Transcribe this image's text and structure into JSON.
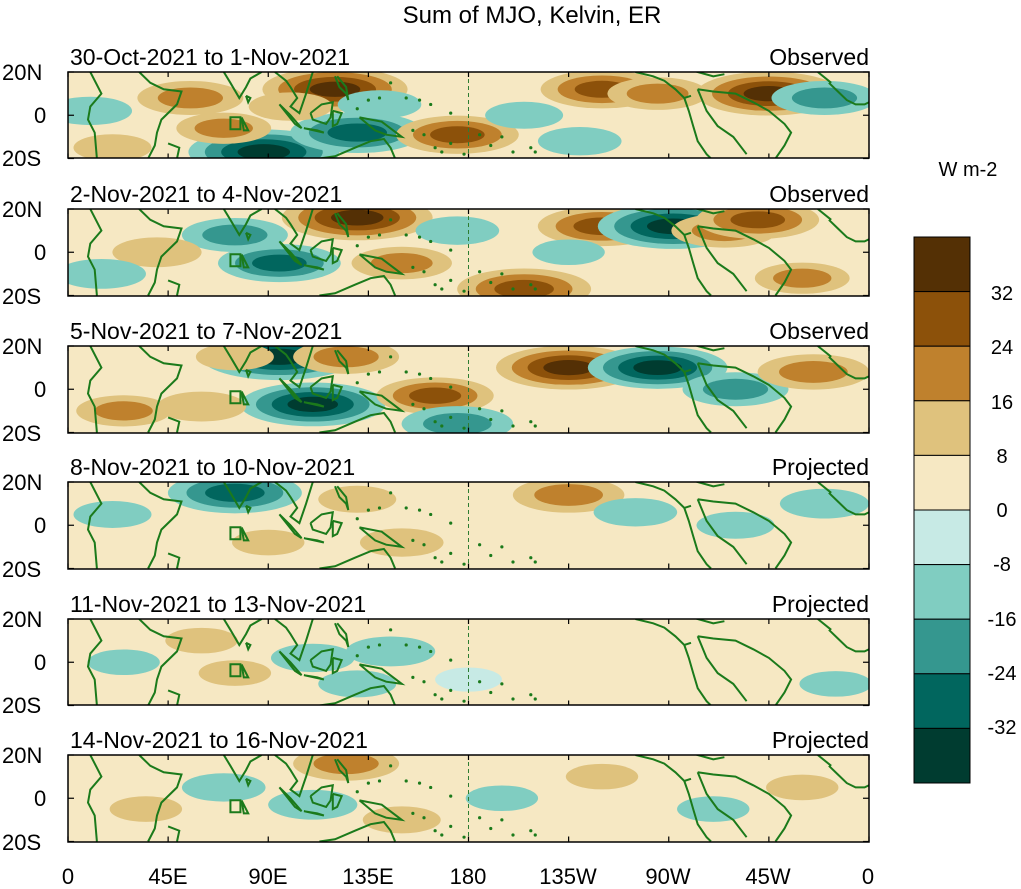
{
  "chart_data": {
    "type": "heatmap",
    "title": "Sum of MJO, Kelvin, ER",
    "colorbar": {
      "units": "W m-2",
      "tick_labels": [
        "32",
        "24",
        "16",
        "8",
        "0",
        "-8",
        "-16",
        "-24",
        "-32"
      ],
      "levels": [
        -40,
        -32,
        -24,
        -16,
        -8,
        0,
        8,
        16,
        24,
        32,
        40
      ],
      "colors": [
        "#003c30",
        "#01665e",
        "#35978f",
        "#80cdc1",
        "#c7eae5",
        "#f6e8c3",
        "#dfc27d",
        "#bf812d",
        "#8c510a",
        "#543005"
      ]
    },
    "x_ticks": [
      "0",
      "45E",
      "90E",
      "135E",
      "180",
      "135W",
      "90W",
      "45W",
      "0"
    ],
    "x_tick_lon": [
      0,
      45,
      90,
      135,
      180,
      225,
      270,
      315,
      360
    ],
    "y_ticks": [
      "20N",
      "0",
      "20S"
    ],
    "y_tick_lat": [
      20,
      0,
      -20
    ],
    "lat_range": [
      -20,
      20
    ],
    "lon_range": [
      0,
      360
    ],
    "panels": [
      {
        "period": "30-Oct-2021 to 1-Nov-2021",
        "status": "Observed",
        "anomalies": [
          {
            "lon": 120,
            "lat": 12,
            "value": 34
          },
          {
            "lon": 140,
            "lat": 5,
            "value": -12
          },
          {
            "lon": 88,
            "lat": -17,
            "value": -36
          },
          {
            "lon": 130,
            "lat": -8,
            "value": -30
          },
          {
            "lon": 175,
            "lat": -9,
            "value": 26
          },
          {
            "lon": 55,
            "lat": 8,
            "value": 20
          },
          {
            "lon": 240,
            "lat": 12,
            "value": 26
          },
          {
            "lon": 265,
            "lat": 10,
            "value": 18
          },
          {
            "lon": 315,
            "lat": 10,
            "value": 34
          },
          {
            "lon": 340,
            "lat": 8,
            "value": -20
          },
          {
            "lon": 10,
            "lat": 2,
            "value": -12
          },
          {
            "lon": 70,
            "lat": -6,
            "value": 16
          },
          {
            "lon": 100,
            "lat": 4,
            "value": 12
          },
          {
            "lon": 205,
            "lat": 0,
            "value": -10
          },
          {
            "lon": 230,
            "lat": -12,
            "value": -12
          },
          {
            "lon": 20,
            "lat": -15,
            "value": 10
          }
        ]
      },
      {
        "period": "2-Nov-2021 to 4-Nov-2021",
        "status": "Observed",
        "anomalies": [
          {
            "lon": 130,
            "lat": 16,
            "value": 36
          },
          {
            "lon": 240,
            "lat": 12,
            "value": 28
          },
          {
            "lon": 272,
            "lat": 12,
            "value": -36
          },
          {
            "lon": 295,
            "lat": 10,
            "value": 20
          },
          {
            "lon": 310,
            "lat": 15,
            "value": 26
          },
          {
            "lon": 205,
            "lat": -17,
            "value": 30
          },
          {
            "lon": 95,
            "lat": -5,
            "value": -26
          },
          {
            "lon": 75,
            "lat": 8,
            "value": -20
          },
          {
            "lon": 150,
            "lat": -5,
            "value": 18
          },
          {
            "lon": 40,
            "lat": 0,
            "value": 14
          },
          {
            "lon": 330,
            "lat": -12,
            "value": 16
          },
          {
            "lon": 175,
            "lat": 10,
            "value": -12
          },
          {
            "lon": 15,
            "lat": -10,
            "value": -14
          },
          {
            "lon": 225,
            "lat": 0,
            "value": -8
          }
        ]
      },
      {
        "period": "5-Nov-2021 to 7-Nov-2021",
        "status": "Observed",
        "anomalies": [
          {
            "lon": 95,
            "lat": 15,
            "value": -38
          },
          {
            "lon": 110,
            "lat": -7,
            "value": -34
          },
          {
            "lon": 125,
            "lat": 15,
            "value": 20
          },
          {
            "lon": 165,
            "lat": -3,
            "value": 24
          },
          {
            "lon": 225,
            "lat": 10,
            "value": 34
          },
          {
            "lon": 265,
            "lat": 10,
            "value": -32
          },
          {
            "lon": 300,
            "lat": 0,
            "value": -20
          },
          {
            "lon": 25,
            "lat": -10,
            "value": 16
          },
          {
            "lon": 60,
            "lat": -8,
            "value": 14
          },
          {
            "lon": 335,
            "lat": 8,
            "value": 22
          },
          {
            "lon": 175,
            "lat": -16,
            "value": -22
          },
          {
            "lon": 75,
            "lat": 15,
            "value": 10
          }
        ]
      },
      {
        "period": "8-Nov-2021 to 10-Nov-2021",
        "status": "Projected",
        "anomalies": [
          {
            "lon": 75,
            "lat": 15,
            "value": -30
          },
          {
            "lon": 225,
            "lat": 14,
            "value": 22
          },
          {
            "lon": 130,
            "lat": 12,
            "value": 10
          },
          {
            "lon": 150,
            "lat": -8,
            "value": 12
          },
          {
            "lon": 90,
            "lat": -8,
            "value": 8
          },
          {
            "lon": 255,
            "lat": 6,
            "value": -12
          },
          {
            "lon": 300,
            "lat": 0,
            "value": -10
          },
          {
            "lon": 20,
            "lat": 5,
            "value": -10
          },
          {
            "lon": 340,
            "lat": 10,
            "value": -14
          },
          {
            "lon": 60,
            "lat": -3,
            "value": 6
          },
          {
            "lon": 180,
            "lat": 5,
            "value": 6
          }
        ]
      },
      {
        "period": "11-Nov-2021 to 13-Nov-2021",
        "status": "Projected",
        "anomalies": [
          {
            "lon": 110,
            "lat": 2,
            "value": -12
          },
          {
            "lon": 145,
            "lat": 5,
            "value": -14
          },
          {
            "lon": 130,
            "lat": -10,
            "value": -10
          },
          {
            "lon": 60,
            "lat": 10,
            "value": 8
          },
          {
            "lon": 75,
            "lat": -5,
            "value": 8
          },
          {
            "lon": 200,
            "lat": 10,
            "value": 7
          },
          {
            "lon": 240,
            "lat": -5,
            "value": 6
          },
          {
            "lon": 300,
            "lat": 5,
            "value": 6
          },
          {
            "lon": 25,
            "lat": 0,
            "value": -8
          },
          {
            "lon": 180,
            "lat": -8,
            "value": -6
          },
          {
            "lon": 345,
            "lat": -10,
            "value": -8
          }
        ]
      },
      {
        "period": "14-Nov-2021 to 16-Nov-2021",
        "status": "Projected",
        "anomalies": [
          {
            "lon": 125,
            "lat": 16,
            "value": 20
          },
          {
            "lon": 110,
            "lat": -3,
            "value": -14
          },
          {
            "lon": 70,
            "lat": 5,
            "value": -12
          },
          {
            "lon": 150,
            "lat": -10,
            "value": 10
          },
          {
            "lon": 35,
            "lat": -5,
            "value": 8
          },
          {
            "lon": 195,
            "lat": 0,
            "value": -8
          },
          {
            "lon": 240,
            "lat": 10,
            "value": 8
          },
          {
            "lon": 290,
            "lat": -5,
            "value": -8
          },
          {
            "lon": 330,
            "lat": 5,
            "value": 8
          },
          {
            "lon": 175,
            "lat": 15,
            "value": 6
          }
        ]
      }
    ]
  }
}
